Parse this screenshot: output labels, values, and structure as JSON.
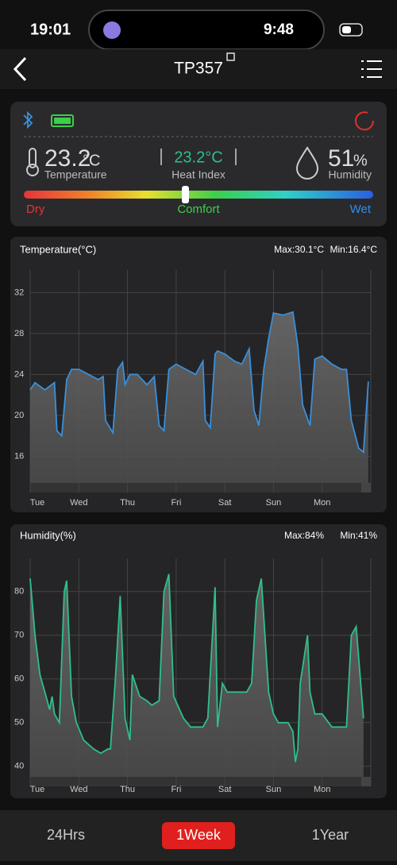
{
  "status_bar": {
    "time": "19:01",
    "island_time": "9:48"
  },
  "header": {
    "title": "TP357"
  },
  "sensor": {
    "temperature_value": "23.2",
    "temperature_unit": "°C",
    "temperature_label": "Temperature",
    "heat_index_value": "23.2°C",
    "heat_index_label": "Heat Index",
    "humidity_value": "51",
    "humidity_unit": "%",
    "humidity_label": "Humidity",
    "scale_left": "Dry",
    "scale_middle": "Comfort",
    "scale_right": "Wet"
  },
  "chart_data": [
    {
      "type": "area",
      "title": "Temperature(°C)",
      "max_label": "Max:30.1°C",
      "min_label": "Min:16.4°C",
      "color": "#3b8fd9",
      "x": [
        0,
        0.1,
        0.3,
        0.5,
        0.55,
        0.65,
        0.75,
        0.85,
        1.0,
        1.2,
        1.4,
        1.5,
        1.55,
        1.7,
        1.8,
        1.9,
        1.95,
        2.05,
        2.2,
        2.4,
        2.55,
        2.65,
        2.75,
        2.85,
        3.0,
        3.2,
        3.4,
        3.55,
        3.6,
        3.7,
        3.8,
        3.85,
        4.0,
        4.2,
        4.35,
        4.5,
        4.6,
        4.7,
        4.8,
        4.9,
        5.0,
        5.2,
        5.4,
        5.5,
        5.6,
        5.75,
        5.85,
        6.0,
        6.2,
        6.4,
        6.5,
        6.6,
        6.75,
        6.85,
        6.95
      ],
      "values": [
        22.5,
        23.2,
        22.5,
        23.2,
        18.5,
        18.0,
        23.5,
        24.5,
        24.5,
        24.0,
        23.5,
        23.8,
        19.5,
        18.3,
        24.5,
        25.2,
        23.0,
        24.0,
        24.0,
        23.0,
        23.8,
        19.0,
        18.5,
        24.5,
        25.0,
        24.5,
        24.0,
        25.3,
        19.5,
        18.8,
        26.0,
        26.3,
        26.0,
        25.3,
        25.0,
        26.5,
        20.5,
        19.0,
        24.5,
        27.5,
        30.0,
        29.8,
        30.1,
        26.8,
        21.0,
        19.0,
        25.5,
        25.8,
        25.0,
        24.5,
        24.5,
        19.5,
        16.8,
        16.4,
        23.3
      ],
      "xlim": [
        0,
        7
      ],
      "xticks": [
        {
          "value": 0,
          "label": "Tue"
        },
        {
          "value": 1,
          "label": "Wed"
        },
        {
          "value": 2,
          "label": "Thu"
        },
        {
          "value": 3,
          "label": "Fri"
        },
        {
          "value": 4,
          "label": "Sat"
        },
        {
          "value": 5,
          "label": "Sun"
        },
        {
          "value": 6,
          "label": "Mon"
        }
      ],
      "ylim": [
        13.4,
        34.2
      ],
      "yticks": [
        16,
        20,
        24,
        28,
        32
      ],
      "grid": true
    },
    {
      "type": "area",
      "title": "Humidity(%)",
      "max_label": "Max:84%",
      "min_label": "Min:41%",
      "color": "#2fbf8a",
      "x": [
        0,
        0.1,
        0.2,
        0.35,
        0.4,
        0.45,
        0.5,
        0.6,
        0.7,
        0.75,
        0.85,
        0.95,
        1.1,
        1.3,
        1.45,
        1.6,
        1.65,
        1.75,
        1.85,
        1.95,
        2.05,
        2.1,
        2.25,
        2.4,
        2.5,
        2.65,
        2.75,
        2.85,
        2.95,
        3.15,
        3.3,
        3.55,
        3.65,
        3.8,
        3.85,
        3.95,
        4.05,
        4.45,
        4.55,
        4.65,
        4.75,
        4.9,
        5.0,
        5.1,
        5.3,
        5.4,
        5.45,
        5.5,
        5.55,
        5.7,
        5.75,
        5.85,
        6.0,
        6.2,
        6.5,
        6.6,
        6.7,
        6.85
      ],
      "values": [
        83,
        70,
        61,
        55,
        53,
        56,
        52,
        50,
        80,
        82.5,
        56,
        50,
        46,
        44,
        43,
        44,
        44,
        60,
        79,
        51,
        46,
        61,
        56,
        55,
        54,
        55,
        80,
        84,
        56,
        51,
        49,
        49,
        51,
        81,
        49,
        59,
        57,
        57,
        59,
        78,
        83,
        57,
        52,
        50,
        50,
        48,
        41,
        44,
        59,
        70,
        57,
        52,
        52,
        49,
        49,
        70,
        72,
        51
      ],
      "xlim": [
        0,
        7
      ],
      "xticks": [
        {
          "value": 0,
          "label": "Tue"
        },
        {
          "value": 1,
          "label": "Wed"
        },
        {
          "value": 2,
          "label": "Thu"
        },
        {
          "value": 3,
          "label": "Fri"
        },
        {
          "value": 4,
          "label": "Sat"
        },
        {
          "value": 5,
          "label": "Sun"
        },
        {
          "value": 6,
          "label": "Mon"
        }
      ],
      "ylim": [
        37.6,
        87.6
      ],
      "yticks": [
        40,
        50,
        60,
        70,
        80
      ],
      "grid": true
    }
  ],
  "tabs": [
    "24Hrs",
    "1Week",
    "1Year"
  ]
}
